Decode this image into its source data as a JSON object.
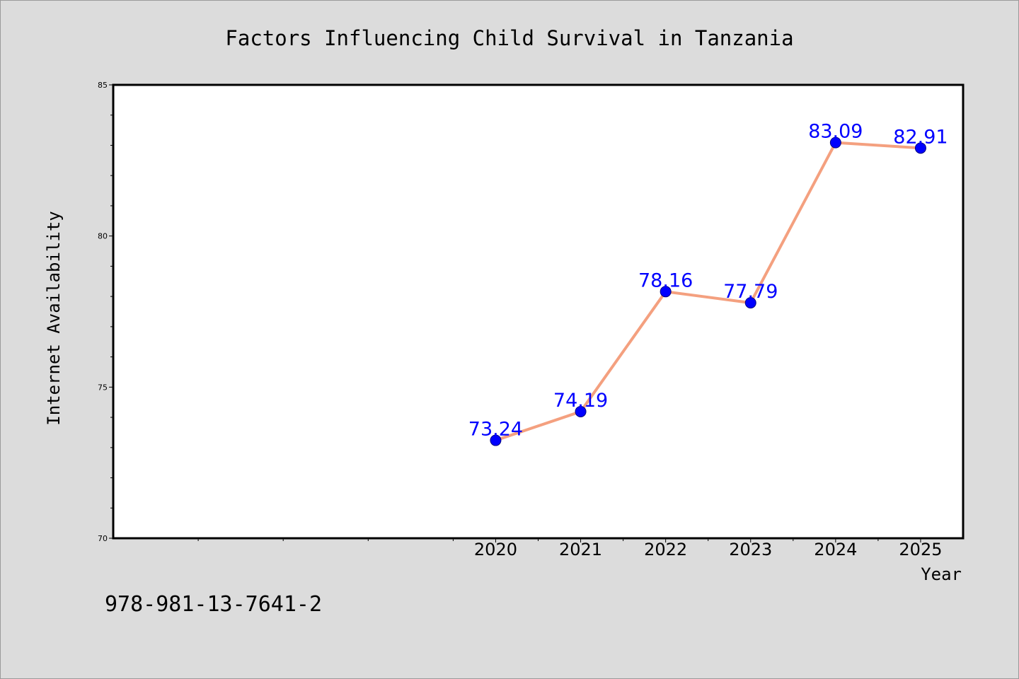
{
  "chart_data": {
    "type": "line",
    "title": "Factors Influencing Child Survival in Tanzania",
    "xlabel": "Year",
    "ylabel": "Internet Availability",
    "x": [
      "2020",
      "2021",
      "2022",
      "2023",
      "2024",
      "2025"
    ],
    "values": [
      73.24,
      74.19,
      78.16,
      77.79,
      83.09,
      82.91
    ],
    "data_labels": [
      "73.24",
      "74.19",
      "78.16",
      "77.79",
      "83.09",
      "82.91"
    ],
    "ylim": [
      70,
      85
    ],
    "x_range": [
      2015.5,
      2025.5
    ],
    "yticks": [
      "70",
      "75",
      "80",
      "85"
    ],
    "grid": false,
    "legend": "none",
    "colors": {
      "line": "#f4a07f",
      "marker": "#0000ff",
      "marker_edge": "#000080",
      "label": "#0000ff",
      "plot_bg": "#ffffff",
      "figure_bg": "#dcdcdc"
    }
  },
  "footnote": "978-981-13-7641-2"
}
